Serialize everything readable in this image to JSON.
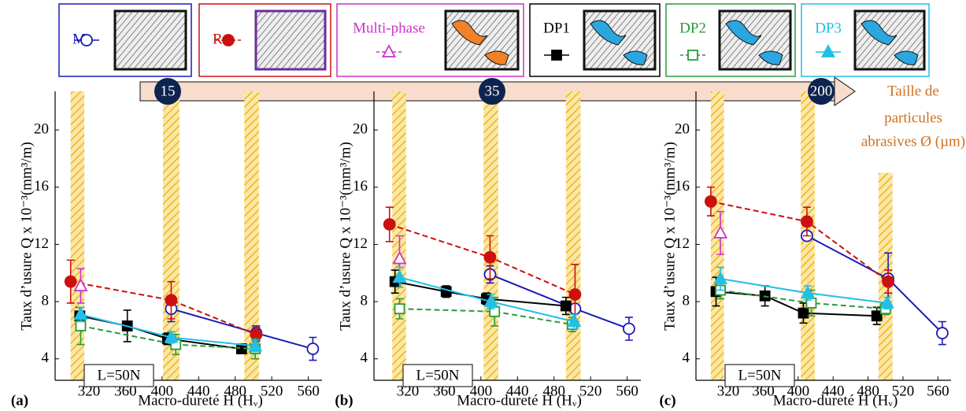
{
  "particle_size_label": [
    "Taille de",
    "particules",
    "abrasives Ø (µm)"
  ],
  "chart_data": [
    {
      "type": "line",
      "panel_label": "(a)",
      "particle_size": 15,
      "note": "L=50N",
      "x_label": "Macro-dureté H (Hᵥ)",
      "y_label": "Taux d’usure Q x 10⁻³(mm³/m)",
      "xlim": [
        283,
        575
      ],
      "ylim": [
        2.5,
        22.7
      ],
      "xticks": [
        320,
        360,
        400,
        440,
        480,
        520,
        560
      ],
      "yticks": [
        4,
        8,
        12,
        16,
        20
      ],
      "bands": [
        {
          "x": [
            300,
            315
          ]
        },
        {
          "x": [
            401,
            419
          ]
        },
        {
          "x": [
            490,
            506
          ]
        }
      ],
      "series": [
        {
          "name": "M",
          "color": "#1a1ab8",
          "marker": "circle-open",
          "dash": false,
          "x": [
            410,
            503,
            565
          ],
          "values": [
            7.5,
            5.8,
            4.7
          ],
          "errors": [
            0.9,
            0.5,
            0.8
          ]
        },
        {
          "name": "R",
          "color": "#cc1010",
          "marker": "circle",
          "dash": true,
          "x": [
            300,
            410,
            503
          ],
          "values": [
            9.4,
            8.1,
            5.7
          ],
          "errors": [
            1.5,
            1.3,
            0.5
          ]
        },
        {
          "name": "Multi-phase",
          "color": "#cc33cc",
          "marker": "triangle-open",
          "dash": true,
          "x": [
            311
          ],
          "values": [
            9.1
          ],
          "errors": [
            1.2
          ]
        },
        {
          "name": "DP1",
          "color": "#000000",
          "marker": "square",
          "dash": false,
          "x": [
            310,
            362,
            406,
            487
          ],
          "values": [
            7.0,
            6.3,
            5.4,
            4.7
          ],
          "errors": [
            0.6,
            1.1,
            0.4,
            0.3
          ]
        },
        {
          "name": "DP2",
          "color": "#2a9a3a",
          "marker": "square-open",
          "dash": true,
          "x": [
            311,
            415,
            502
          ],
          "values": [
            6.3,
            5.0,
            4.7
          ],
          "errors": [
            1.3,
            0.7,
            0.7
          ]
        },
        {
          "name": "DP3",
          "color": "#22bfe8",
          "marker": "triangle",
          "dash": false,
          "x": [
            311,
            410,
            502
          ],
          "values": [
            7.1,
            5.5,
            4.9
          ],
          "errors": [
            0.5,
            0.4,
            0.4
          ]
        }
      ]
    },
    {
      "type": "line",
      "panel_label": "(b)",
      "particle_size": 35,
      "note": "L=50N",
      "x_label": "Macro-dureté H (Hᵥ)",
      "y_label": "Taux d’usure Q x 10⁻³(mm³/m)",
      "xlim": [
        283,
        575
      ],
      "ylim": [
        2.5,
        22.7
      ],
      "xticks": [
        320,
        360,
        400,
        440,
        480,
        520,
        560
      ],
      "yticks": [
        4,
        8,
        12,
        16,
        20
      ],
      "bands": [
        {
          "x": [
            303,
            318
          ]
        },
        {
          "x": [
            403,
            419
          ]
        },
        {
          "x": [
            493,
            509
          ]
        }
      ],
      "series": [
        {
          "name": "M",
          "color": "#1a1ab8",
          "marker": "circle-open",
          "dash": false,
          "x": [
            410,
            503,
            562
          ],
          "values": [
            9.9,
            7.5,
            6.1
          ],
          "errors": [
            0.6,
            0.9,
            0.8
          ]
        },
        {
          "name": "R",
          "color": "#cc1010",
          "marker": "circle",
          "dash": true,
          "x": [
            300,
            410,
            503
          ],
          "values": [
            13.4,
            11.1,
            8.5
          ],
          "errors": [
            1.2,
            1.5,
            2.1
          ]
        },
        {
          "name": "Multi-phase",
          "color": "#cc33cc",
          "marker": "triangle-open",
          "dash": true,
          "x": [
            311
          ],
          "values": [
            11.0
          ],
          "errors": [
            1.6
          ]
        },
        {
          "name": "DP1",
          "color": "#000000",
          "marker": "square",
          "dash": false,
          "x": [
            306,
            362,
            406,
            493
          ],
          "values": [
            9.4,
            8.7,
            8.2,
            7.7
          ],
          "errors": [
            0.8,
            0.4,
            0.4,
            0.6
          ]
        },
        {
          "name": "DP2",
          "color": "#2a9a3a",
          "marker": "square-open",
          "dash": true,
          "x": [
            311,
            415,
            500
          ],
          "values": [
            7.5,
            7.3,
            6.4
          ],
          "errors": [
            0.7,
            1.0,
            0.5
          ]
        },
        {
          "name": "DP3",
          "color": "#22bfe8",
          "marker": "triangle",
          "dash": false,
          "x": [
            311,
            411,
            502
          ],
          "values": [
            9.7,
            8.0,
            6.6
          ],
          "errors": [
            0.7,
            0.5,
            0.5
          ]
        }
      ]
    },
    {
      "type": "line",
      "panel_label": "(c)",
      "particle_size": 200,
      "note": "L=50N",
      "x_label": "Macro-dureté H (Hᵥ)",
      "y_label": "Taux d’usure Q x 10⁻³(mm³/m)",
      "xlim": [
        283,
        575
      ],
      "ylim": [
        2.5,
        22.7
      ],
      "xticks": [
        320,
        360,
        400,
        440,
        480,
        520,
        560
      ],
      "yticks": [
        4,
        8,
        12,
        16,
        20
      ],
      "bands": [
        {
          "x": [
            300,
            315
          ]
        },
        {
          "x": [
            403,
            419
          ]
        },
        {
          "x": [
            492,
            508
          ],
          "top": 17
        }
      ],
      "series": [
        {
          "name": "M",
          "color": "#1a1ab8",
          "marker": "circle-open",
          "dash": false,
          "x": [
            410,
            503,
            565
          ],
          "values": [
            12.6,
            9.6,
            5.8
          ],
          "errors": [
            0.3,
            1.8,
            0.8
          ]
        },
        {
          "name": "R",
          "color": "#cc1010",
          "marker": "circle",
          "dash": true,
          "x": [
            300,
            410,
            503
          ],
          "values": [
            15.0,
            13.6,
            9.4
          ],
          "errors": [
            1.0,
            1.0,
            0.8
          ]
        },
        {
          "name": "Multi-phase",
          "color": "#cc33cc",
          "marker": "triangle-open",
          "dash": true,
          "x": [
            311
          ],
          "values": [
            12.8
          ],
          "errors": [
            1.5
          ]
        },
        {
          "name": "DP1",
          "color": "#000000",
          "marker": "square",
          "dash": false,
          "x": [
            306,
            362,
            406,
            490
          ],
          "values": [
            8.7,
            8.4,
            7.2,
            7.0
          ],
          "errors": [
            1.0,
            0.7,
            0.7,
            0.6
          ]
        },
        {
          "name": "DP2",
          "color": "#2a9a3a",
          "marker": "square-open",
          "dash": true,
          "x": [
            311,
            415,
            500
          ],
          "values": [
            8.8,
            7.9,
            7.5
          ],
          "errors": [
            0.6,
            0.9,
            0.4
          ]
        },
        {
          "name": "DP3",
          "color": "#22bfe8",
          "marker": "triangle",
          "dash": false,
          "x": [
            311,
            411,
            502
          ],
          "values": [
            9.6,
            8.6,
            7.9
          ],
          "errors": [
            0.8,
            0.5,
            0.4
          ]
        }
      ]
    }
  ]
}
